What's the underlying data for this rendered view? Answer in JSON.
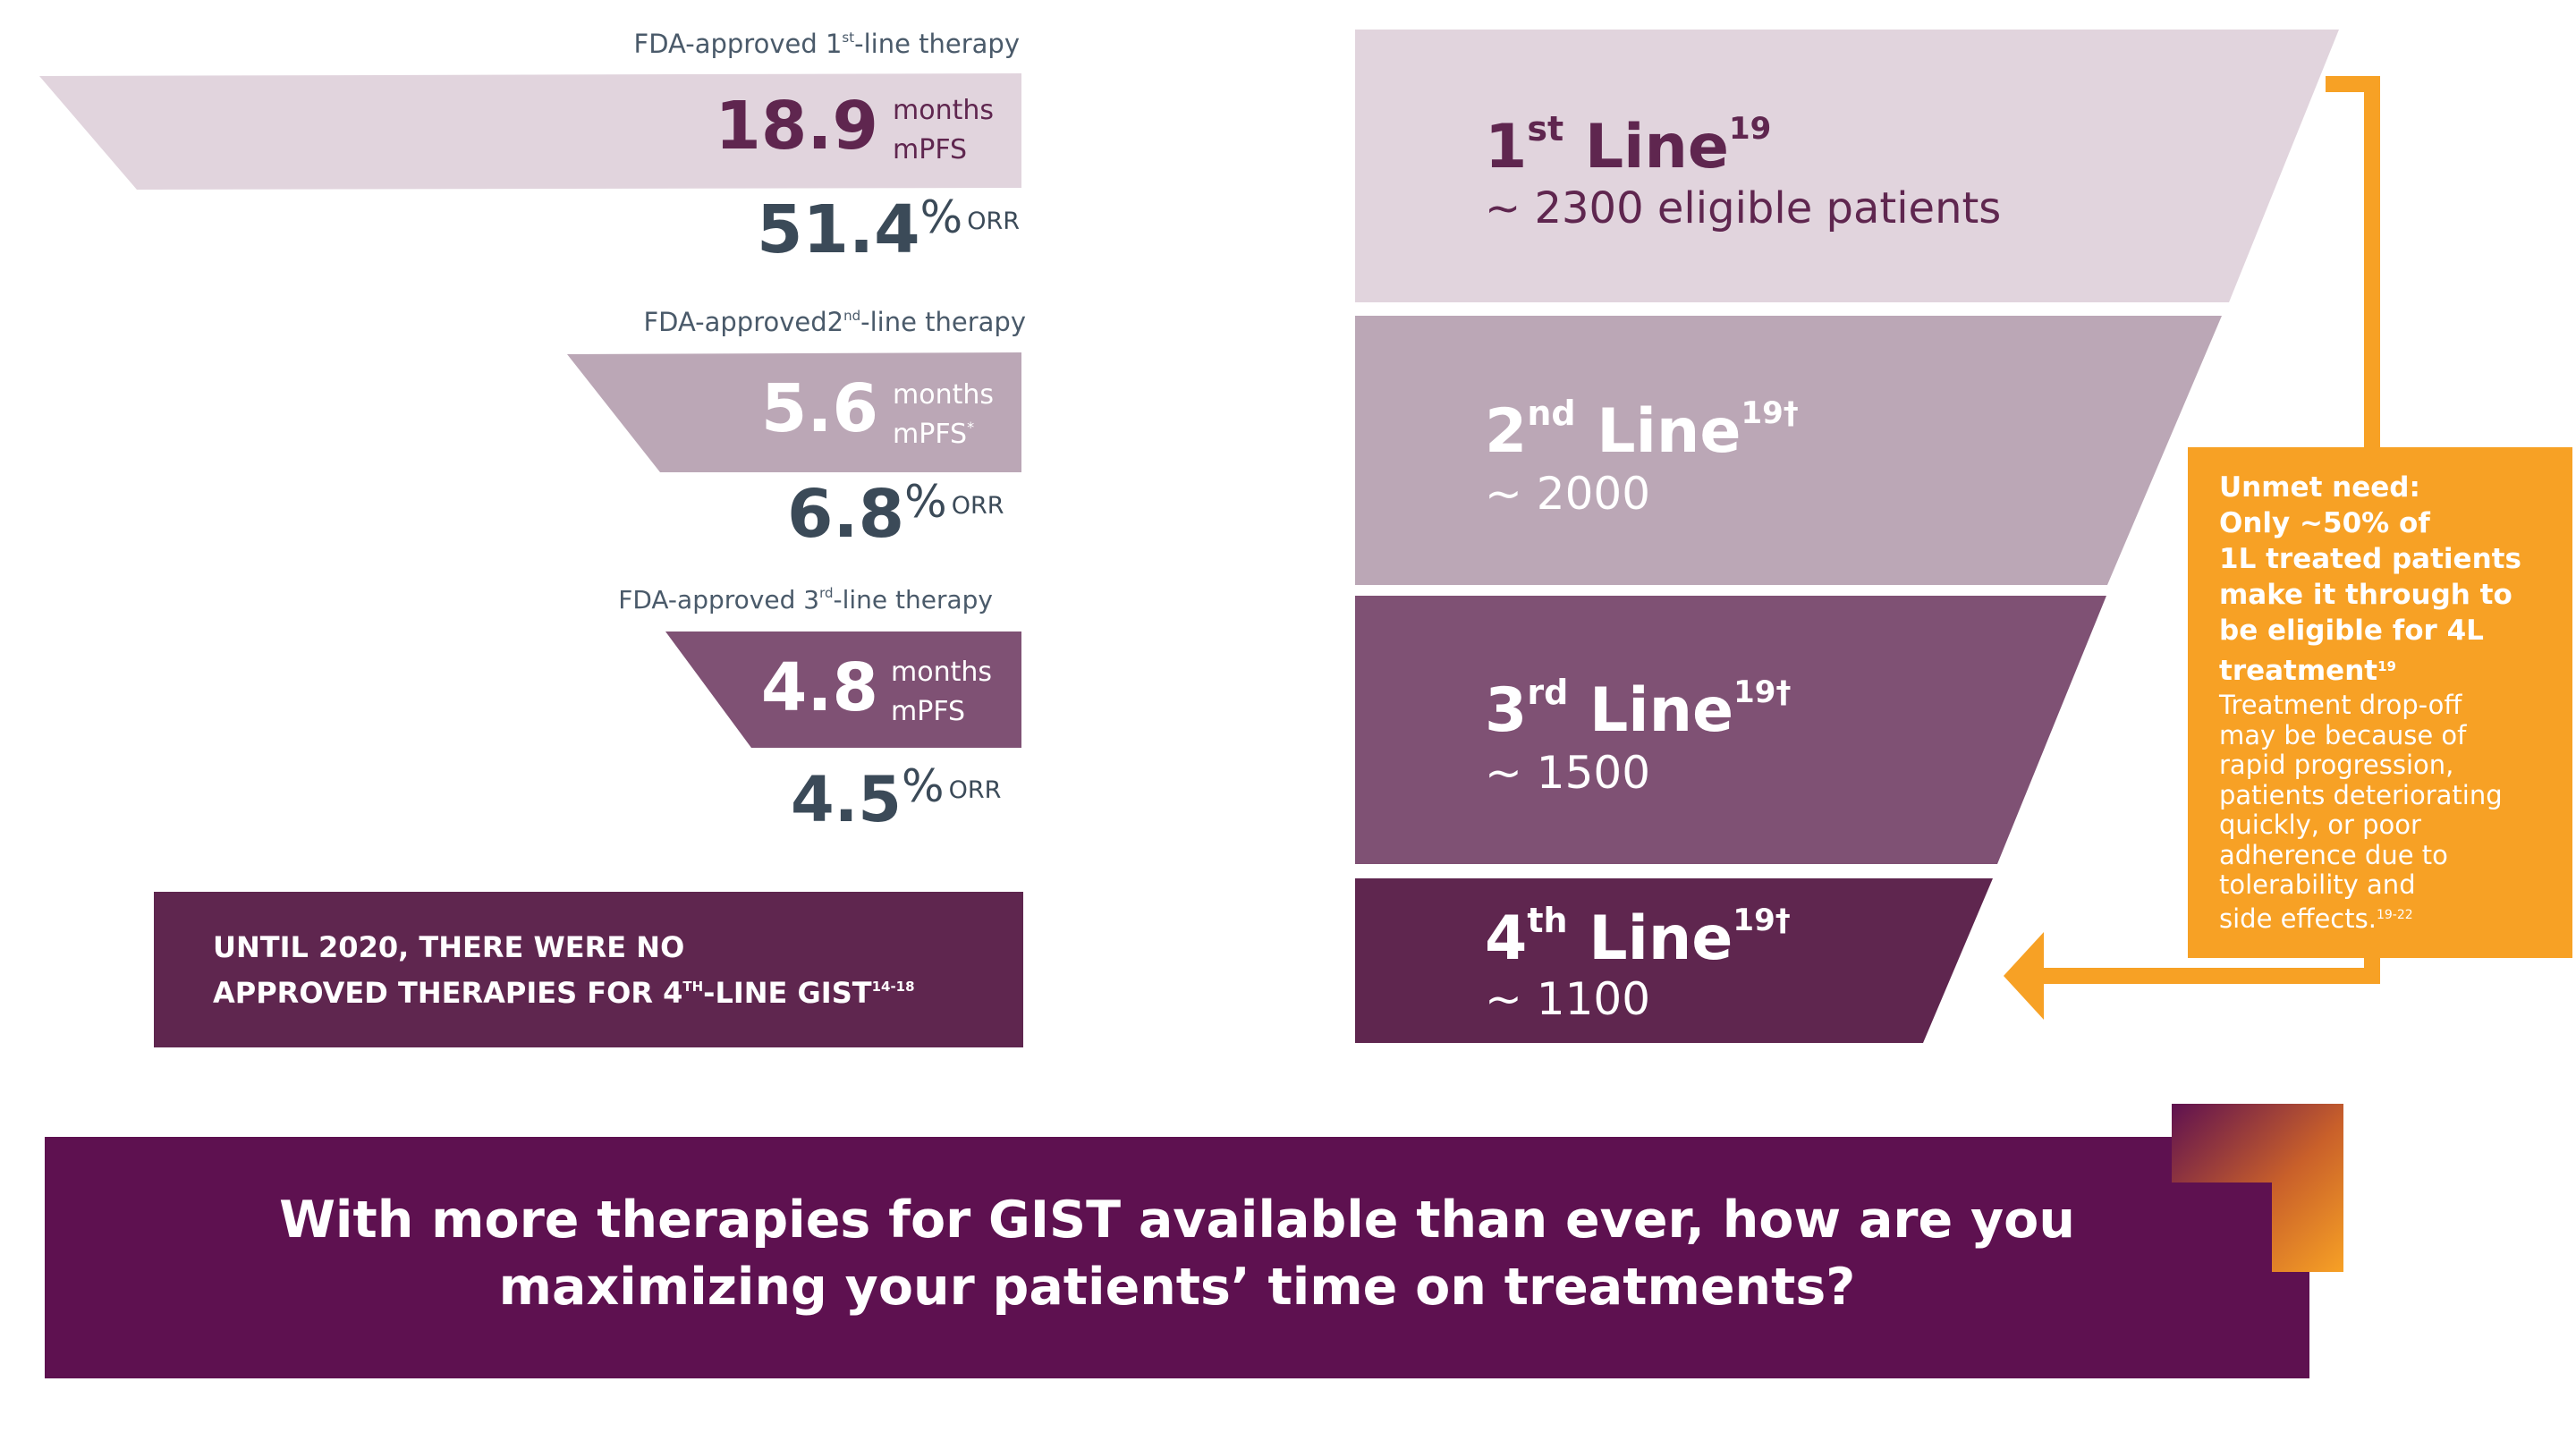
{
  "colors": {
    "plum_dark": "#5f264f",
    "plum_mid": "#7f5174",
    "mauve": "#bba7b6",
    "mauve_light": "#e1d4dd",
    "purple_banner": "#5e1150",
    "orange": "#f7a125",
    "slate": "#3b4a58"
  },
  "therapies": [
    {
      "label_pre": "FDA-approved 1",
      "label_sup": "st",
      "label_post": "-line therapy",
      "pfs_value": "18.9",
      "pfs_unit1": "months",
      "pfs_unit2": "mPFS",
      "pfs_unit2_sup": "",
      "orr_value": "51.4",
      "orr_pct": "%",
      "orr_label": "ORR"
    },
    {
      "label_pre": "FDA-approved2",
      "label_sup": "nd",
      "label_post": "-line therapy",
      "pfs_value": "5.6",
      "pfs_unit1": "months",
      "pfs_unit2": "mPFS",
      "pfs_unit2_sup": "*",
      "orr_value": "6.8",
      "orr_pct": "%",
      "orr_label": "ORR"
    },
    {
      "label_pre": "FDA-approved 3",
      "label_sup": "rd",
      "label_post": "-line therapy",
      "pfs_value": "4.8",
      "pfs_unit1": "months",
      "pfs_unit2": "mPFS",
      "pfs_unit2_sup": "",
      "orr_value": "4.5",
      "orr_pct": "%",
      "orr_label": "ORR"
    }
  ],
  "until_box": {
    "line1": "UNTIL 2020, THERE WERE NO",
    "line2_pre": "APPROVED THERAPIES FOR 4",
    "line2_sup": "TH",
    "line2_post": "-LINE GIST",
    "line2_ref": "14-18"
  },
  "funnel": [
    {
      "num": "1",
      "suffix": "st",
      "word": "Line",
      "ref": "19",
      "sub": "~ 2300 eligible patients"
    },
    {
      "num": "2",
      "suffix": "nd",
      "word": "Line",
      "ref": "19†",
      "sub": "~ 2000"
    },
    {
      "num": "3",
      "suffix": "rd",
      "word": "Line",
      "ref": "19†",
      "sub": "~ 1500"
    },
    {
      "num": "4",
      "suffix": "th",
      "word": "Line",
      "ref": "19†",
      "sub": "~ 1100"
    }
  ],
  "unmet": {
    "heading_lines": [
      "Unmet need:",
      "Only ~50% of",
      "1L treated patients",
      "make it through to",
      "be eligible for 4L"
    ],
    "heading_last": "treatment",
    "heading_last_ref": "19",
    "body_lines": [
      "Treatment drop-off",
      "may be because of",
      "rapid progression,",
      "patients deteriorating",
      "quickly, or poor",
      "adherence due to",
      "tolerability and"
    ],
    "body_last": "side effects.",
    "body_last_ref": "19-22"
  },
  "banner": {
    "line1": "With more therapies for GIST available than ever, how are you",
    "line2": "maximizing your patients’ time on treatments?"
  }
}
